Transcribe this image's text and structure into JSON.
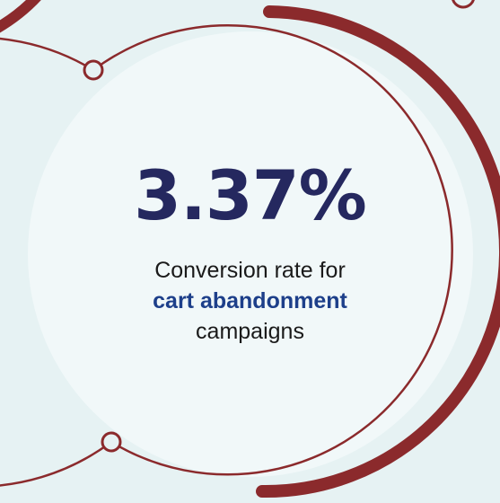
{
  "colors": {
    "background": "#e6f2f3",
    "disc_fill": "#f1f8f9",
    "ring": "#8b2a2c",
    "stat_value": "#25285f",
    "highlight_text": "#1d3f8a",
    "body_text": "#1a1a1a"
  },
  "stat": {
    "value": "3.37%",
    "caption_line1": "Conversion rate for",
    "caption_highlight": "cart abandonment",
    "caption_line3": "campaigns"
  }
}
